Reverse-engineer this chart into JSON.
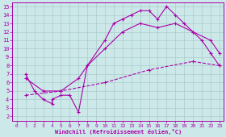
{
  "xlabel": "Windchill (Refroidissement éolien,°C)",
  "bg_color": "#cce8e8",
  "line_color": "#aa00aa",
  "grid_color": "#aacccc",
  "xlim": [
    -0.5,
    23.5
  ],
  "ylim": [
    1.5,
    15.5
  ],
  "xticks": [
    0,
    1,
    2,
    3,
    4,
    5,
    6,
    7,
    8,
    9,
    10,
    11,
    12,
    13,
    14,
    15,
    16,
    17,
    18,
    19,
    20,
    21,
    22,
    23
  ],
  "yticks": [
    2,
    3,
    4,
    5,
    6,
    7,
    8,
    9,
    10,
    11,
    12,
    13,
    14,
    15
  ],
  "line1_x": [
    1,
    2,
    3,
    4,
    4,
    5,
    6,
    7,
    8,
    10,
    11,
    12,
    13,
    14,
    15,
    16,
    17,
    18,
    19,
    20,
    21,
    22,
    23
  ],
  "line1_y": [
    7,
    5,
    4,
    3.5,
    4,
    4.5,
    4.5,
    2.5,
    8,
    11,
    13,
    13.5,
    14,
    14.5,
    14.5,
    13.5,
    15,
    14,
    13,
    12,
    11,
    9.5,
    8
  ],
  "line2_x": [
    1,
    3,
    5,
    7,
    8,
    10,
    12,
    14,
    16,
    18,
    20,
    22,
    23
  ],
  "line2_y": [
    6.5,
    5,
    5,
    6.5,
    8,
    10,
    12,
    13,
    12.5,
    13,
    12,
    11,
    9.5
  ],
  "line3_x": [
    1,
    5,
    10,
    15,
    20,
    23
  ],
  "line3_y": [
    4.5,
    5,
    6,
    7.5,
    8.5,
    8
  ],
  "markersize": 2.5,
  "linewidth": 0.8
}
